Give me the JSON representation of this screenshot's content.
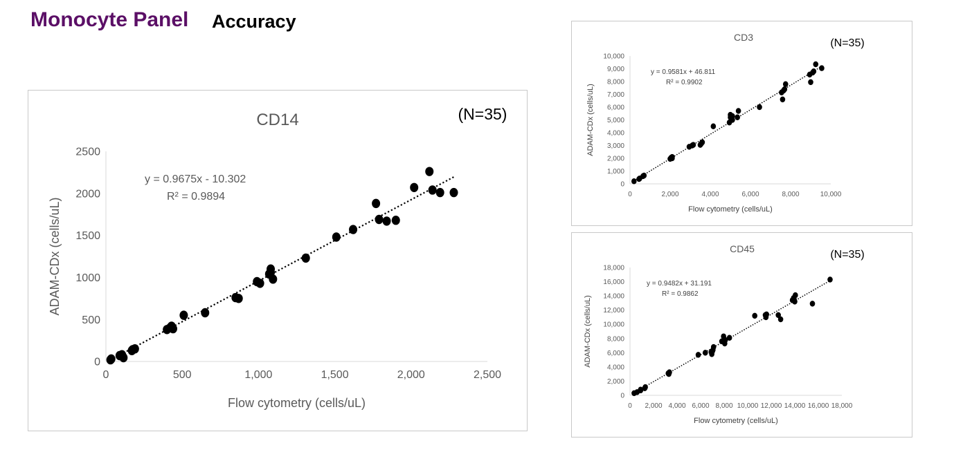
{
  "page": {
    "title": "Monocyte Panel",
    "subtitle": "Accuracy",
    "title_color": "#5b0f66"
  },
  "chart_data": [
    {
      "id": "cd14",
      "type": "scatter",
      "title": "CD14",
      "n_label": "(N=35)",
      "xlabel": "Flow cytometry (cells/uL)",
      "ylabel": "ADAM-CDx (cells/uL)",
      "xlim": [
        0,
        2500
      ],
      "ylim": [
        0,
        2500
      ],
      "xticks": [
        0,
        500,
        1000,
        1500,
        2000,
        2500
      ],
      "xtick_labels": [
        "0",
        "500",
        "1,000",
        "1,500",
        "2,000",
        "2,500"
      ],
      "yticks": [
        0,
        500,
        1000,
        1500,
        2000,
        2500
      ],
      "ytick_labels": [
        "0",
        "500",
        "1000",
        "1500",
        "2000",
        "2500"
      ],
      "equation": "y = 0.9675x - 10.302",
      "r2": "R² = 0.9894",
      "trendline": {
        "slope": 0.9675,
        "intercept": -10.302,
        "x_range": [
          30,
          2280
        ]
      },
      "grid": false,
      "point_color": "#000000",
      "x": [
        30,
        35,
        90,
        110,
        115,
        170,
        190,
        400,
        430,
        440,
        510,
        650,
        850,
        870,
        990,
        1010,
        1070,
        1080,
        1095,
        1310,
        1510,
        1620,
        1770,
        1790,
        1840,
        1900,
        2020,
        2120,
        2140,
        2190,
        2280,
        105,
        1080,
        175,
        420
      ],
      "y": [
        20,
        30,
        70,
        60,
        45,
        130,
        150,
        380,
        420,
        390,
        550,
        580,
        760,
        750,
        950,
        930,
        1040,
        1100,
        980,
        1230,
        1480,
        1570,
        1880,
        1690,
        1670,
        1680,
        2070,
        2260,
        2040,
        2010,
        2010,
        80,
        1060,
        140,
        400
      ]
    },
    {
      "id": "cd3",
      "type": "scatter",
      "title": "CD3",
      "n_label": "(N=35)",
      "xlabel": "Flow cytometry (cells/uL)",
      "ylabel": "ADAM-CDx (cells/uL)",
      "xlim": [
        0,
        10000
      ],
      "ylim": [
        0,
        10000
      ],
      "xticks": [
        0,
        2000,
        4000,
        6000,
        8000,
        10000
      ],
      "xtick_labels": [
        "0",
        "2,000",
        "4,000",
        "6,000",
        "8,000",
        "10,000"
      ],
      "yticks": [
        0,
        1000,
        2000,
        3000,
        4000,
        5000,
        6000,
        7000,
        8000,
        9000,
        10000
      ],
      "ytick_labels": [
        "0",
        "1,000",
        "2,000",
        "3,000",
        "4,000",
        "5,000",
        "6,000",
        "7,000",
        "8,000",
        "9,000",
        "10,000"
      ],
      "equation": "y = 0.9581x + 46.811",
      "r2": "R² = 0.9902",
      "trendline": {
        "slope": 0.9581,
        "intercept": 46.811,
        "x_range": [
          200,
          9500
        ]
      },
      "grid": false,
      "point_color": "#000000",
      "x": [
        200,
        450,
        700,
        2000,
        2100,
        2950,
        3150,
        3500,
        3600,
        4150,
        4950,
        5000,
        5100,
        5350,
        5400,
        6450,
        7550,
        7600,
        7700,
        7750,
        8950,
        9000,
        9150,
        9250,
        9550,
        650,
        2050,
        3550,
        5100,
        7650,
        480,
        2100,
        5000,
        9100,
        3100
      ],
      "y": [
        200,
        380,
        650,
        1950,
        2100,
        2900,
        3050,
        3050,
        3250,
        4500,
        4800,
        5400,
        5000,
        5200,
        5700,
        6000,
        7150,
        6600,
        7400,
        7800,
        8550,
        7950,
        8800,
        9350,
        9050,
        600,
        2050,
        3150,
        5300,
        7300,
        420,
        2000,
        5200,
        8700,
        3000
      ]
    },
    {
      "id": "cd45",
      "type": "scatter",
      "title": "CD45",
      "n_label": "(N=35)",
      "xlabel": "Flow cytometry (cells/uL)",
      "ylabel": "ADAM-CDx (cells/uL)",
      "xlim": [
        0,
        18000
      ],
      "ylim": [
        0,
        18000
      ],
      "xticks": [
        0,
        2000,
        4000,
        6000,
        8000,
        10000,
        12000,
        14000,
        16000,
        18000
      ],
      "xtick_labels": [
        "0",
        "2,000",
        "4,000",
        "6,000",
        "8,000",
        "10,000",
        "12,000",
        "14,000",
        "16,000",
        "18,000"
      ],
      "yticks": [
        0,
        2000,
        4000,
        6000,
        8000,
        10000,
        12000,
        14000,
        16000,
        18000
      ],
      "ytick_labels": [
        "0",
        "2,000",
        "4,000",
        "6,000",
        "8,000",
        "10,000",
        "12,000",
        "14,000",
        "16,000",
        "18,000"
      ],
      "equation": "y = 0.9482x + 31.191",
      "r2": "R² = 0.9862",
      "trendline": {
        "slope": 0.9482,
        "intercept": 31.191,
        "x_range": [
          300,
          17000
        ]
      },
      "grid": false,
      "point_color": "#000000",
      "x": [
        350,
        600,
        900,
        1300,
        3300,
        3350,
        5800,
        6400,
        6900,
        7050,
        7100,
        7800,
        7950,
        8050,
        8100,
        8450,
        10600,
        11500,
        11550,
        12600,
        12800,
        13800,
        13900,
        14000,
        14050,
        15500,
        17000,
        1250,
        3250,
        7000,
        8000,
        11600,
        13950,
        6950,
        900
      ],
      "y": [
        300,
        450,
        800,
        1150,
        3000,
        3250,
        5700,
        6000,
        6100,
        6400,
        6800,
        7600,
        8300,
        7300,
        7800,
        8100,
        11200,
        11300,
        11000,
        11300,
        10700,
        13400,
        13700,
        13200,
        14100,
        12900,
        16300,
        1000,
        3100,
        6200,
        7500,
        11400,
        13500,
        5800,
        700
      ]
    }
  ]
}
